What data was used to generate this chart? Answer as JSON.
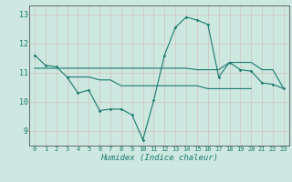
{
  "xlabel": "Humidex (Indice chaleur)",
  "x": [
    0,
    1,
    2,
    3,
    4,
    5,
    6,
    7,
    8,
    9,
    10,
    11,
    12,
    13,
    14,
    15,
    16,
    17,
    18,
    19,
    20,
    21,
    22,
    23
  ],
  "line_main": [
    11.6,
    11.25,
    11.2,
    10.85,
    10.3,
    10.4,
    9.7,
    9.75,
    9.75,
    9.55,
    8.7,
    10.05,
    11.6,
    12.55,
    12.9,
    12.8,
    12.65,
    10.85,
    11.35,
    11.1,
    11.05,
    10.65,
    10.6,
    10.45
  ],
  "line_upper": [
    11.15,
    11.15,
    11.15,
    11.15,
    11.15,
    11.15,
    11.15,
    11.15,
    11.15,
    11.15,
    11.15,
    11.15,
    11.15,
    11.15,
    11.15,
    11.1,
    11.1,
    11.1,
    11.35,
    11.35,
    11.35,
    11.1,
    11.1,
    10.45
  ],
  "line_lower": [
    null,
    null,
    null,
    10.85,
    10.85,
    10.85,
    10.75,
    10.75,
    10.55,
    10.55,
    10.55,
    10.55,
    10.55,
    10.55,
    10.55,
    10.55,
    10.45,
    10.45,
    10.45,
    10.45,
    10.45,
    null,
    null,
    null
  ],
  "ylim": [
    8.5,
    13.3
  ],
  "xlim": [
    -0.5,
    23.5
  ],
  "yticks": [
    9,
    10,
    11,
    12,
    13
  ],
  "xticks": [
    0,
    1,
    2,
    3,
    4,
    5,
    6,
    7,
    8,
    9,
    10,
    11,
    12,
    13,
    14,
    15,
    16,
    17,
    18,
    19,
    20,
    21,
    22,
    23
  ],
  "line_color": "#1a7a6e",
  "bg_color": "#cce8e0",
  "grid_color_major": "#b8d8d0",
  "grid_color_minor": "#cce8e0"
}
